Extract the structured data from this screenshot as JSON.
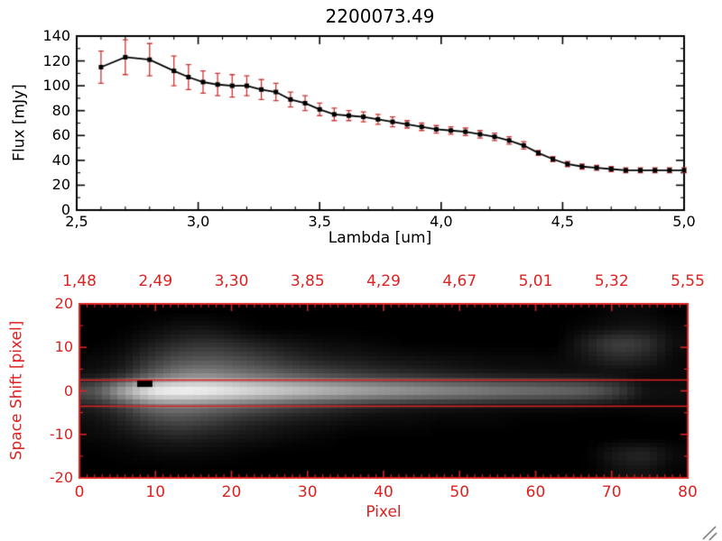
{
  "figure": {
    "background": "#ffffff",
    "black": "#000000",
    "accent_red": "#dd2222",
    "errorbar_red": "#cc3333"
  },
  "chart_data": [
    {
      "type": "line",
      "title": "2200073.49",
      "xlabel": "Lambda [um]",
      "ylabel": "Flux [mJy]",
      "xlim": [
        2.5,
        5.0
      ],
      "ylim": [
        0,
        140
      ],
      "grid": false,
      "x_ticks": {
        "values": [
          2.5,
          3.0,
          3.5,
          4.0,
          4.5,
          5.0
        ],
        "labels": [
          "2,5",
          "3,0",
          "3,5",
          "4,0",
          "4,5",
          "5,0"
        ]
      },
      "y_ticks": {
        "values": [
          0,
          20,
          40,
          60,
          80,
          100,
          120,
          140
        ],
        "labels": [
          "0",
          "20",
          "40",
          "60",
          "80",
          "100",
          "120",
          "140"
        ]
      },
      "series": [
        {
          "name": "spectrum",
          "marker": "square",
          "line_color": "#000000",
          "marker_color": "#000000",
          "error_color": "#cc3333",
          "x": [
            2.6,
            2.7,
            2.8,
            2.9,
            2.96,
            3.02,
            3.08,
            3.14,
            3.2,
            3.26,
            3.32,
            3.38,
            3.44,
            3.5,
            3.56,
            3.62,
            3.68,
            3.74,
            3.8,
            3.86,
            3.92,
            3.98,
            4.04,
            4.1,
            4.16,
            4.22,
            4.28,
            4.34,
            4.4,
            4.46,
            4.52,
            4.58,
            4.64,
            4.7,
            4.76,
            4.82,
            4.88,
            4.94,
            5.0
          ],
          "y": [
            115,
            123,
            121,
            112,
            107,
            103,
            101,
            100,
            100,
            97,
            95,
            89,
            86,
            81,
            77,
            76,
            75,
            73,
            71,
            69,
            67,
            65,
            64,
            63,
            61,
            59,
            56,
            52,
            46,
            41,
            37,
            35,
            34,
            33,
            32,
            32,
            32,
            32,
            32
          ],
          "yerr": [
            13,
            14,
            13,
            12,
            10,
            9,
            9,
            9,
            8,
            8,
            7,
            6,
            6,
            5,
            5,
            4,
            4,
            4,
            4,
            3,
            3,
            3,
            3,
            3,
            3,
            3,
            3,
            3,
            2,
            2,
            2,
            2,
            2,
            2,
            2,
            2,
            2,
            2,
            2
          ]
        }
      ]
    },
    {
      "type": "heatmap",
      "title": "",
      "xlabel": "Pixel",
      "ylabel": "Space Shift [pixel]",
      "axis_color": "#dd2222",
      "xlim": [
        0,
        80
      ],
      "ylim": [
        -20,
        20
      ],
      "x_ticks": {
        "values": [
          0,
          10,
          20,
          30,
          40,
          50,
          60,
          70,
          80
        ],
        "labels": [
          "0",
          "10",
          "20",
          "30",
          "40",
          "50",
          "60",
          "70",
          "80"
        ]
      },
      "y_ticks": {
        "values": [
          20,
          10,
          0,
          -10,
          -20
        ],
        "labels": [
          "20",
          "10",
          "0",
          "-10",
          "-20"
        ]
      },
      "top_axis_labels": {
        "values": [
          0,
          10,
          20,
          30,
          40,
          50,
          60,
          70,
          80
        ],
        "labels": [
          "1,48",
          "2,49",
          "3,30",
          "3,85",
          "4,29",
          "4,67",
          "5,01",
          "5,32",
          "5,55"
        ]
      },
      "aperture_lines_y": [
        2.5,
        -3.5
      ],
      "colormap": "grayscale",
      "grid_x": [
        0,
        4,
        8,
        12,
        16,
        20,
        24,
        28,
        32,
        36,
        40,
        44,
        48,
        52,
        56,
        60,
        64,
        68,
        72,
        76,
        80
      ],
      "grid_y": [
        20,
        16,
        12,
        8,
        4,
        0,
        -4,
        -8,
        -12,
        -16,
        -20
      ],
      "values": [
        [
          0,
          0,
          0,
          0,
          0,
          0,
          0,
          0,
          0,
          0,
          0,
          0,
          0,
          0,
          0,
          0,
          0,
          0,
          2,
          2,
          0
        ],
        [
          0,
          0,
          2,
          5,
          5,
          2,
          0,
          0,
          0,
          0,
          0,
          0,
          0,
          0,
          0,
          0,
          0,
          2,
          5,
          6,
          2
        ],
        [
          0,
          2,
          8,
          14,
          16,
          12,
          8,
          5,
          3,
          2,
          1,
          0,
          0,
          0,
          0,
          0,
          0,
          10,
          22,
          18,
          4
        ],
        [
          2,
          6,
          18,
          28,
          30,
          26,
          20,
          14,
          10,
          8,
          6,
          5,
          4,
          3,
          2,
          2,
          2,
          6,
          12,
          10,
          2
        ],
        [
          6,
          14,
          34,
          48,
          50,
          44,
          38,
          32,
          26,
          22,
          18,
          15,
          12,
          10,
          8,
          7,
          6,
          5,
          4,
          2,
          2
        ],
        [
          30,
          65,
          95,
          100,
          97,
          90,
          84,
          78,
          72,
          67,
          62,
          58,
          54,
          50,
          46,
          43,
          40,
          36,
          24,
          6,
          4
        ],
        [
          10,
          22,
          40,
          44,
          40,
          34,
          28,
          22,
          17,
          13,
          10,
          8,
          7,
          6,
          5,
          4,
          4,
          3,
          2,
          2,
          2
        ],
        [
          4,
          10,
          20,
          24,
          20,
          14,
          10,
          7,
          5,
          3,
          2,
          2,
          1,
          1,
          1,
          0,
          0,
          0,
          0,
          0,
          0
        ],
        [
          2,
          4,
          8,
          10,
          8,
          6,
          4,
          2,
          1,
          0,
          0,
          0,
          0,
          0,
          0,
          0,
          0,
          0,
          0,
          0,
          0
        ],
        [
          0,
          1,
          2,
          3,
          2,
          1,
          0,
          0,
          0,
          0,
          0,
          0,
          0,
          0,
          0,
          0,
          0,
          0,
          8,
          12,
          3
        ],
        [
          0,
          0,
          0,
          0,
          0,
          0,
          0,
          0,
          0,
          0,
          0,
          0,
          0,
          0,
          0,
          0,
          0,
          0,
          4,
          6,
          1
        ]
      ],
      "dark_marker": {
        "x": [
          7.6,
          9.6
        ],
        "y": [
          2.4,
          0.9
        ]
      }
    }
  ]
}
